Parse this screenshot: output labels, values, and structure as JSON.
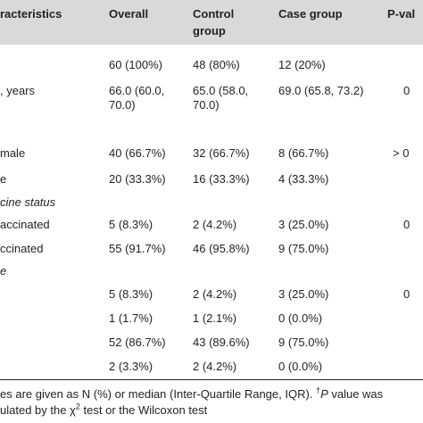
{
  "headers": {
    "characteristics": "racteristics",
    "overall": "Overall",
    "control_line1": "Control",
    "control_line2": "group",
    "case": "Case group",
    "pvalue": "P-val"
  },
  "rows": [
    {
      "label": "",
      "overall": "60 (100%)",
      "control": "48 (80%)",
      "case": "12 (20%)",
      "p": ""
    },
    {
      "label": ", years",
      "overall": "66.0 (60.0,",
      "control": "65.0 (58.0,",
      "case": "69.0 (65.8, 73.2)",
      "p": "0"
    },
    {
      "label": "",
      "overall": "70.0)",
      "control": "70.0)",
      "case": "",
      "p": ""
    },
    {
      "label": "male",
      "overall": "40 (66.7%)",
      "control": "32 (66.7%)",
      "case": "8 (66.7%)",
      "p": "> 0"
    },
    {
      "label": "e",
      "overall": "20 (33.3%)",
      "control": "16 (33.3%)",
      "case": "4 (33.3%)",
      "p": ""
    },
    {
      "label": "cine status",
      "overall": "",
      "control": "",
      "case": "",
      "p": ""
    },
    {
      "label": "accinated",
      "overall": "5 (8.3%)",
      "control": "2 (4.2%)",
      "case": "3 (25.0%)",
      "p": "0"
    },
    {
      "label": "ccinated",
      "overall": "55 (91.7%)",
      "control": "46 (95.8%)",
      "case": "9 (75.0%)",
      "p": ""
    },
    {
      "label": "e",
      "overall": "",
      "control": "",
      "case": "",
      "p": ""
    },
    {
      "label": "",
      "overall": "5 (8.3%)",
      "control": "2 (4.2%)",
      "case": "3 (25.0%)",
      "p": "0"
    },
    {
      "label": "",
      "overall": "1 (1.7%)",
      "control": "1 (2.1%)",
      "case": "0 (0.0%)",
      "p": ""
    },
    {
      "label": "",
      "overall": "52 (86.7%)",
      "control": "43 (89.6%)",
      "case": "9 (75.0%)",
      "p": ""
    },
    {
      "label": "",
      "overall": "2 (3.3%)",
      "control": "2 (4.2%)",
      "case": "0 (0.0%)",
      "p": ""
    }
  ],
  "footnote": {
    "line1_a": "es are given as N (%) or median (Inter-Quartile Range, IQR).",
    "line1_dagger": "†",
    "line1_p": "P",
    "line1_b": " value was",
    "line2_a": "ulated by the χ",
    "line2_sup": "2",
    "line2_b": " test or the Wilcoxon test"
  }
}
